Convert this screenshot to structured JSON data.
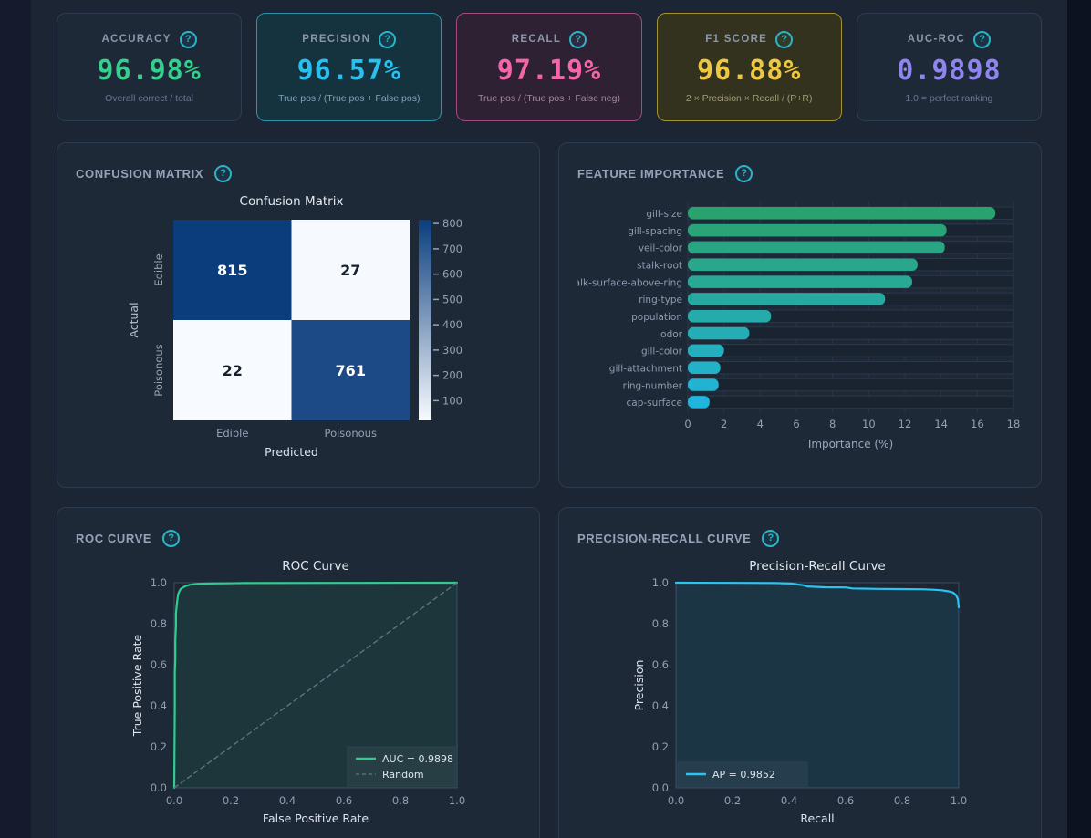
{
  "help_icon": "?",
  "metrics": [
    {
      "id": "accuracy",
      "label": "ACCURACY",
      "value": "96.98%",
      "desc": "Overall correct / total",
      "accent": "#35d08e",
      "variant": "default"
    },
    {
      "id": "precision",
      "label": "PRECISION",
      "value": "96.57%",
      "desc": "True pos / (True pos + False pos)",
      "accent": "#29c0f0",
      "variant": "teal"
    },
    {
      "id": "recall",
      "label": "RECALL",
      "value": "97.19%",
      "desc": "True pos / (True pos + False neg)",
      "accent": "#f565a9",
      "variant": "pink"
    },
    {
      "id": "f1",
      "label": "F1 SCORE",
      "value": "96.88%",
      "desc": "2 × Precision × Recall / (P+R)",
      "accent": "#eec843",
      "variant": "yellow"
    },
    {
      "id": "auc",
      "label": "AUC-ROC",
      "value": "0.9898",
      "desc": "1.0 = perfect ranking",
      "accent": "#8f85ee",
      "variant": "default"
    }
  ],
  "panels": {
    "confusion": {
      "title": "CONFUSION MATRIX"
    },
    "feature": {
      "title": "FEATURE IMPORTANCE"
    },
    "roc": {
      "title": "ROC CURVE"
    },
    "pr": {
      "title": "PRECISION-RECALL CURVE"
    }
  },
  "chart_data": [
    {
      "id": "confusion_matrix",
      "type": "heatmap",
      "title": "Confusion Matrix",
      "xlabel": "Predicted",
      "ylabel": "Actual",
      "categories": [
        "Edible",
        "Poisonous"
      ],
      "matrix": [
        [
          815,
          27
        ],
        [
          22,
          761
        ]
      ],
      "vmin": 22,
      "vmax": 815,
      "colorbar_ticks": [
        100,
        200,
        300,
        400,
        500,
        600,
        700,
        800
      ],
      "color_low": "#f7fbff",
      "color_high": "#0b3d7d"
    },
    {
      "id": "feature_importance",
      "type": "bar",
      "orientation": "horizontal",
      "categories": [
        "gill-size",
        "gill-spacing",
        "veil-color",
        "stalk-root",
        "stalk-surface-above-ring",
        "ring-type",
        "population",
        "odor",
        "gill-color",
        "gill-attachment",
        "ring-number",
        "cap-surface"
      ],
      "values": [
        17.0,
        14.3,
        14.2,
        12.7,
        12.4,
        10.9,
        4.6,
        3.4,
        2.0,
        1.8,
        1.7,
        1.2
      ],
      "xlabel": "Importance (%)",
      "xlim": [
        0,
        18
      ],
      "xticks": [
        0,
        2,
        4,
        6,
        8,
        10,
        12,
        14,
        16,
        18
      ],
      "bar_gradient": [
        "#2aa26e",
        "#21b4dc"
      ],
      "grid": true
    },
    {
      "id": "roc_curve",
      "type": "line",
      "title": "ROC Curve",
      "xlabel": "False Positive Rate",
      "ylabel": "True Positive Rate",
      "xlim": [
        0,
        1
      ],
      "ylim": [
        0,
        1
      ],
      "xticks": [
        0.0,
        0.2,
        0.4,
        0.6,
        0.8,
        1.0
      ],
      "yticks": [
        0.0,
        0.2,
        0.4,
        0.6,
        0.8,
        1.0
      ],
      "legend_position": "lower right",
      "series": [
        {
          "name": "AUC = 0.9898",
          "color": "#2ecc8f",
          "style": "solid",
          "fill": true,
          "points": [
            [
              0,
              0
            ],
            [
              0.002,
              0.38
            ],
            [
              0.002,
              0.56
            ],
            [
              0.004,
              0.63
            ],
            [
              0.004,
              0.72
            ],
            [
              0.005,
              0.75
            ],
            [
              0.006,
              0.79
            ],
            [
              0.006,
              0.85
            ],
            [
              0.008,
              0.88
            ],
            [
              0.01,
              0.905
            ],
            [
              0.012,
              0.925
            ],
            [
              0.014,
              0.945
            ],
            [
              0.018,
              0.958
            ],
            [
              0.022,
              0.968
            ],
            [
              0.03,
              0.976
            ],
            [
              0.04,
              0.984
            ],
            [
              0.055,
              0.99
            ],
            [
              0.08,
              0.994
            ],
            [
              0.12,
              0.996
            ],
            [
              0.25,
              0.998
            ],
            [
              0.6,
              0.999
            ],
            [
              1,
              1
            ]
          ]
        },
        {
          "name": "Random",
          "color": "#66738a",
          "style": "dashed",
          "fill": false,
          "points": [
            [
              0,
              0
            ],
            [
              1,
              1
            ]
          ]
        }
      ]
    },
    {
      "id": "pr_curve",
      "type": "line",
      "title": "Precision-Recall Curve",
      "xlabel": "Recall",
      "ylabel": "Precision",
      "xlim": [
        0,
        1
      ],
      "ylim": [
        0,
        1
      ],
      "xticks": [
        0.0,
        0.2,
        0.4,
        0.6,
        0.8,
        1.0
      ],
      "yticks": [
        0.0,
        0.2,
        0.4,
        0.6,
        0.8,
        1.0
      ],
      "legend_position": "lower left",
      "series": [
        {
          "name": "AP = 0.9852",
          "color": "#29c5f0",
          "style": "solid",
          "fill": true,
          "points": [
            [
              0,
              1
            ],
            [
              0.25,
              0.999
            ],
            [
              0.35,
              0.998
            ],
            [
              0.41,
              0.996
            ],
            [
              0.43,
              0.991
            ],
            [
              0.45,
              0.988
            ],
            [
              0.465,
              0.982
            ],
            [
              0.49,
              0.98
            ],
            [
              0.53,
              0.978
            ],
            [
              0.6,
              0.977
            ],
            [
              0.625,
              0.972
            ],
            [
              0.66,
              0.971
            ],
            [
              0.72,
              0.97
            ],
            [
              0.8,
              0.969
            ],
            [
              0.87,
              0.968
            ],
            [
              0.91,
              0.966
            ],
            [
              0.94,
              0.963
            ],
            [
              0.965,
              0.958
            ],
            [
              0.98,
              0.952
            ],
            [
              0.99,
              0.94
            ],
            [
              0.997,
              0.92
            ],
            [
              1,
              0.88
            ]
          ]
        }
      ]
    }
  ]
}
